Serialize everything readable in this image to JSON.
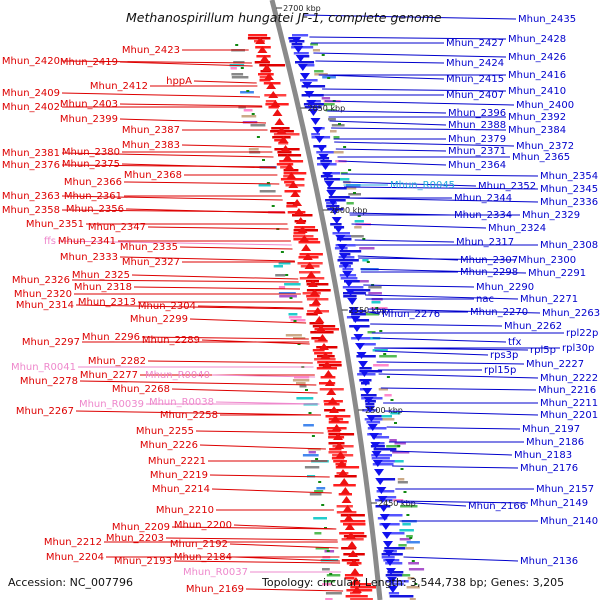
{
  "title": "Methanospirillum hungatei JF-1, complete genome",
  "footer": {
    "accession": "Accession: NC_007796",
    "topology": "Topology: circular; Length: 3,544,738 bp; Genes: 3,205"
  },
  "colors": {
    "left_label": "#dd0000",
    "left_label_pale": "#ee88cc",
    "right_label": "#0000cc",
    "right_label_pale": "#22aadd",
    "backbone": "#8a8a8a"
  },
  "kbp_markers": [
    "2700 kbp",
    "2650 kbp",
    "2600 kbp",
    "2550 kbp",
    "2500 kbp",
    "2450 kbp"
  ],
  "left_labels": [
    {
      "text": "Mhun_2423"
    },
    {
      "text": "Mhun_2420"
    },
    {
      "text": "Mhun_2419"
    },
    {
      "text": "Mhun_2412"
    },
    {
      "text": "hppA"
    },
    {
      "text": "Mhun_2409"
    },
    {
      "text": "Mhun_2402"
    },
    {
      "text": "Mhun_2403"
    },
    {
      "text": "Mhun_2399"
    },
    {
      "text": "Mhun_2387"
    },
    {
      "text": "Mhun_2383"
    },
    {
      "text": "Mhun_2381"
    },
    {
      "text": "Mhun_2380"
    },
    {
      "text": "Mhun_2376"
    },
    {
      "text": "Mhun_2375"
    },
    {
      "text": "Mhun_2368"
    },
    {
      "text": "Mhun_2366"
    },
    {
      "text": "Mhun_2363"
    },
    {
      "text": "Mhun_2361"
    },
    {
      "text": "Mhun_2358"
    },
    {
      "text": "Mhun_2356"
    },
    {
      "text": "Mhun_2351"
    },
    {
      "text": "Mhun_2347"
    },
    {
      "text": "ffs"
    },
    {
      "text": "Mhun_2341"
    },
    {
      "text": "Mhun_2335"
    },
    {
      "text": "Mhun_2333"
    },
    {
      "text": "Mhun_2327"
    },
    {
      "text": "Mhun_2326"
    },
    {
      "text": "Mhun_2325"
    },
    {
      "text": "Mhun_2320"
    },
    {
      "text": "Mhun_2318"
    },
    {
      "text": "Mhun_2314"
    },
    {
      "text": "Mhun_2313"
    },
    {
      "text": "Mhun_2304"
    },
    {
      "text": "Mhun_2299"
    },
    {
      "text": "Mhun_2297"
    },
    {
      "text": "Mhun_2296"
    },
    {
      "text": "Mhun_2289"
    },
    {
      "text": "Mhun_R0041"
    },
    {
      "text": "Mhun_2282"
    },
    {
      "text": "Mhun_2278"
    },
    {
      "text": "Mhun_2277"
    },
    {
      "text": "Mhun_R0040"
    },
    {
      "text": "Mhun_2268"
    },
    {
      "text": "Mhun_R0039"
    },
    {
      "text": "Mhun_R0038"
    },
    {
      "text": "Mhun_2267"
    },
    {
      "text": "Mhun_2258"
    },
    {
      "text": "Mhun_2255"
    },
    {
      "text": "Mhun_2226"
    },
    {
      "text": "Mhun_2221"
    },
    {
      "text": "Mhun_2219"
    },
    {
      "text": "Mhun_2214"
    },
    {
      "text": "Mhun_2210"
    },
    {
      "text": "Mhun_2209"
    },
    {
      "text": "Mhun_2200"
    },
    {
      "text": "Mhun_2212"
    },
    {
      "text": "Mhun_2203"
    },
    {
      "text": "Mhun_2192"
    },
    {
      "text": "Mhun_2204"
    },
    {
      "text": "Mhun_2193"
    },
    {
      "text": "Mhun_2184"
    },
    {
      "text": "Mhun_R0037"
    },
    {
      "text": "Mhun_2169"
    }
  ],
  "right_labels": [
    {
      "text": "Mhun_2435"
    },
    {
      "text": "Mhun_2428"
    },
    {
      "text": "Mhun_2427"
    },
    {
      "text": "Mhun_2426"
    },
    {
      "text": "Mhun_2424"
    },
    {
      "text": "Mhun_2416"
    },
    {
      "text": "Mhun_2415"
    },
    {
      "text": "Mhun_2410"
    },
    {
      "text": "Mhun_2407"
    },
    {
      "text": "Mhun_2400"
    },
    {
      "text": "Mhun_2396"
    },
    {
      "text": "Mhun_2392"
    },
    {
      "text": "Mhun_2388"
    },
    {
      "text": "Mhun_2384"
    },
    {
      "text": "Mhun_2379"
    },
    {
      "text": "Mhun_2372"
    },
    {
      "text": "Mhun_2371"
    },
    {
      "text": "Mhun_2365"
    },
    {
      "text": "Mhun_2364"
    },
    {
      "text": "Mhun_2354"
    },
    {
      "text": "Mhun_R0045"
    },
    {
      "text": "Mhun_2352"
    },
    {
      "text": "Mhun_2345"
    },
    {
      "text": "Mhun_2344"
    },
    {
      "text": "Mhun_2336"
    },
    {
      "text": "Mhun_2334"
    },
    {
      "text": "Mhun_2329"
    },
    {
      "text": "Mhun_2324"
    },
    {
      "text": "Mhun_2317"
    },
    {
      "text": "Mhun_2308"
    },
    {
      "text": "Mhun_2307"
    },
    {
      "text": "Mhun_2300"
    },
    {
      "text": "Mhun_2298"
    },
    {
      "text": "Mhun_2291"
    },
    {
      "text": "Mhun_2290"
    },
    {
      "text": "nac"
    },
    {
      "text": "Mhun_2271"
    },
    {
      "text": "Mhun_2276"
    },
    {
      "text": "Mhun_2270"
    },
    {
      "text": "Mhun_2263"
    },
    {
      "text": "Mhun_2262"
    },
    {
      "text": "rpl22p"
    },
    {
      "text": "tfx"
    },
    {
      "text": "rpl5p"
    },
    {
      "text": "rpl30p"
    },
    {
      "text": "rps3p"
    },
    {
      "text": "Mhun_2227"
    },
    {
      "text": "rpl15p"
    },
    {
      "text": "Mhun_2222"
    },
    {
      "text": "Mhun_2216"
    },
    {
      "text": "Mhun_2211"
    },
    {
      "text": "Mhun_2201"
    },
    {
      "text": "Mhun_2197"
    },
    {
      "text": "Mhun_2186"
    },
    {
      "text": "Mhun_2183"
    },
    {
      "text": "Mhun_2176"
    },
    {
      "text": "Mhun_2157"
    },
    {
      "text": "Mhun_2166"
    },
    {
      "text": "Mhun_2149"
    },
    {
      "text": "Mhun_2140"
    },
    {
      "text": "Mhun_2136"
    }
  ]
}
